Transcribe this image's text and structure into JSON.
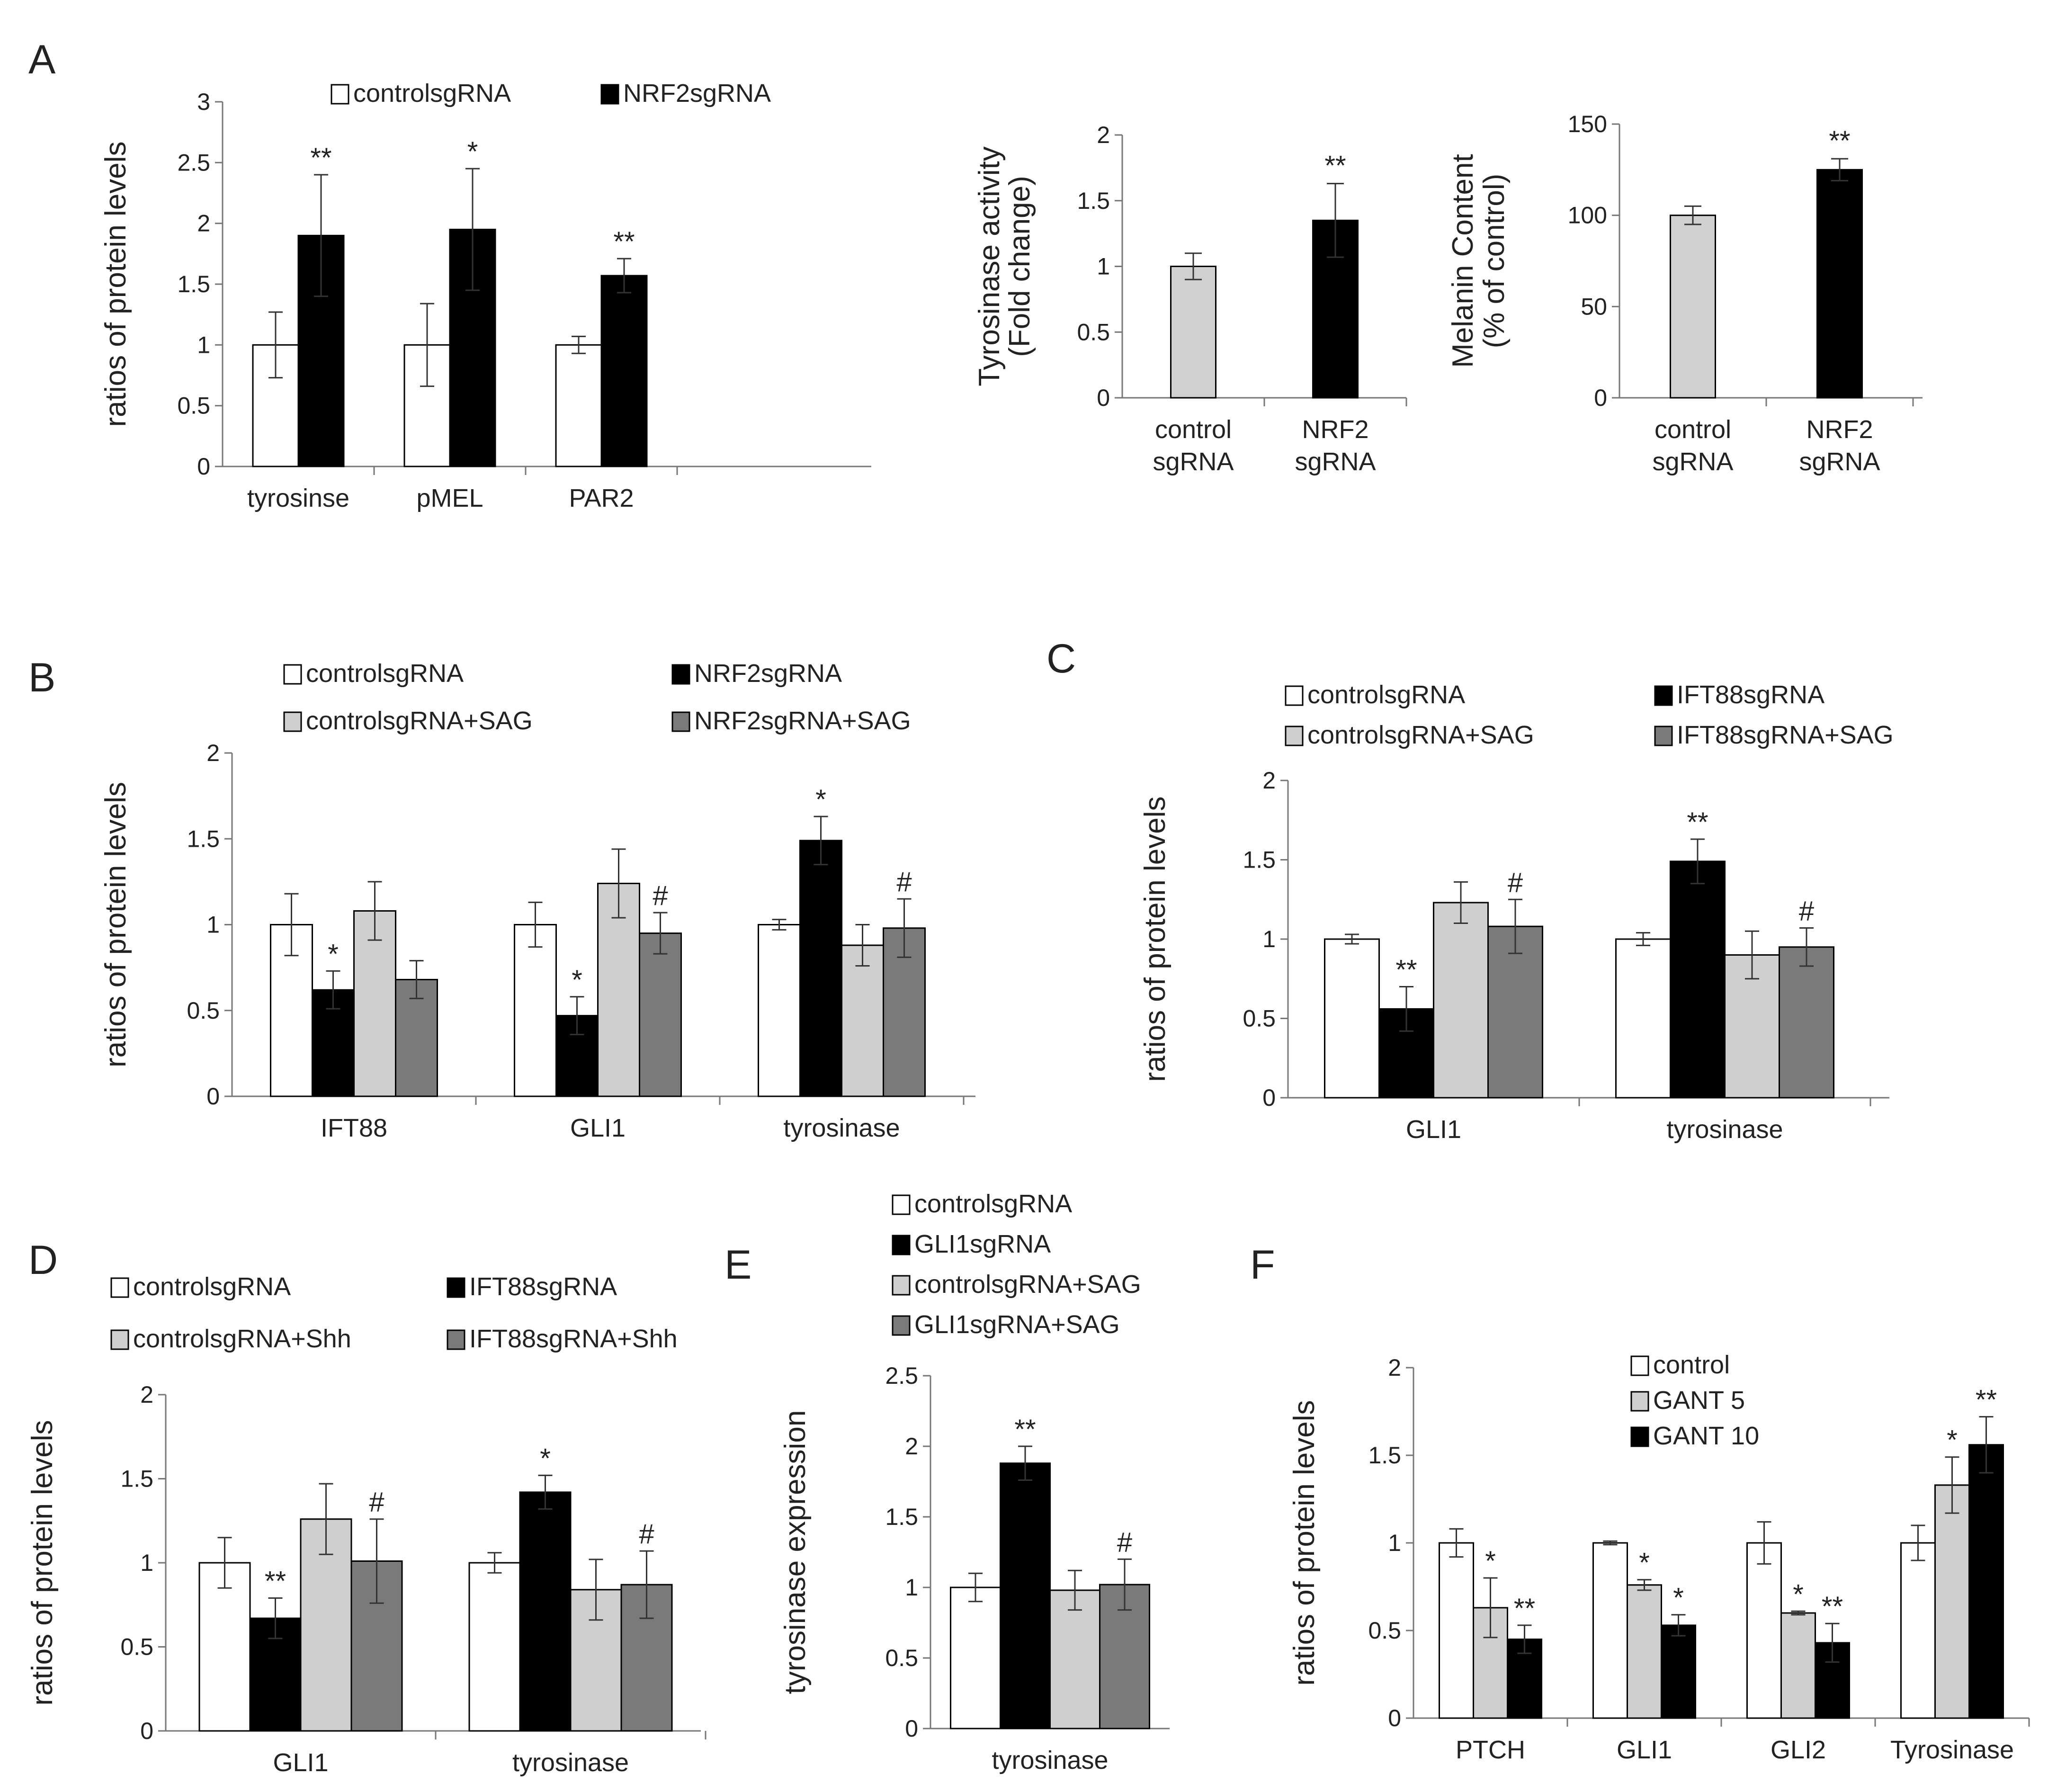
{
  "panels": [
    {
      "id": "A",
      "label": "A"
    },
    {
      "id": "B",
      "label": "B"
    },
    {
      "id": "C",
      "label": "C"
    },
    {
      "id": "D",
      "label": "D"
    },
    {
      "id": "E",
      "label": "E"
    },
    {
      "id": "F",
      "label": "F"
    }
  ],
  "colors": {
    "white": "#ffffff",
    "black": "#000000",
    "light_gray": "#cfcfcf",
    "dark_gray": "#7a7a7a",
    "axis": "#777777"
  },
  "chart_data": [
    {
      "id": "A1",
      "panel": "A",
      "type": "bar",
      "title": "",
      "xlabel": "",
      "ylabel": "ratios of protein levels",
      "ylim": [
        0,
        3
      ],
      "yticks": [
        0,
        0.5,
        1,
        1.5,
        2,
        2.5,
        3
      ],
      "ytick_labels": [
        "0",
        "0.5",
        "1",
        "1.5",
        "2",
        "2.5",
        "3"
      ],
      "categories": [
        "tyrosinse",
        "pMEL",
        "PAR2"
      ],
      "legend": "top",
      "series": [
        {
          "name": "controlsgRNA",
          "color": "#ffffff",
          "values": [
            1.0,
            1.0,
            1.0
          ],
          "errors": [
            0.27,
            0.34,
            0.07
          ],
          "sig": [
            "",
            "",
            ""
          ]
        },
        {
          "name": "NRF2sgRNA",
          "color": "#000000",
          "values": [
            1.9,
            1.95,
            1.57
          ],
          "errors": [
            0.5,
            0.5,
            0.14
          ],
          "sig": [
            "**",
            "*",
            "**"
          ]
        }
      ]
    },
    {
      "id": "A2",
      "panel": "A",
      "type": "bar",
      "title": "",
      "xlabel": "",
      "ylabel": [
        "Tyrosinase activity",
        "(Fold change)"
      ],
      "ylim": [
        0,
        2
      ],
      "yticks": [
        0,
        0.5,
        1,
        1.5,
        2
      ],
      "ytick_labels": [
        "0",
        "0.5",
        "1",
        "1.5",
        "2"
      ],
      "categories": [
        [
          "control",
          "sgRNA"
        ],
        [
          "NRF2",
          "sgRNA"
        ]
      ],
      "legend": "none",
      "series": [
        {
          "name": "",
          "colors": [
            "#d0d0d0",
            "#000000"
          ],
          "values": [
            1.0,
            1.35
          ],
          "errors": [
            0.1,
            0.28
          ],
          "sig": [
            "",
            "**"
          ]
        }
      ]
    },
    {
      "id": "A3",
      "panel": "A",
      "type": "bar",
      "title": "",
      "xlabel": "",
      "ylabel": [
        "Melanin Content",
        "(% of control)"
      ],
      "ylim": [
        0,
        150
      ],
      "yticks": [
        0,
        50,
        100,
        150
      ],
      "ytick_labels": [
        "0",
        "50",
        "100",
        "150"
      ],
      "categories": [
        [
          "control",
          "sgRNA"
        ],
        [
          "NRF2",
          "sgRNA"
        ]
      ],
      "legend": "none",
      "series": [
        {
          "name": "",
          "colors": [
            "#d0d0d0",
            "#000000"
          ],
          "values": [
            100,
            125
          ],
          "errors": [
            5,
            6
          ],
          "sig": [
            "",
            "**"
          ]
        }
      ]
    },
    {
      "id": "B",
      "panel": "B",
      "type": "bar",
      "title": "",
      "xlabel": "",
      "ylabel": "ratios of protein levels",
      "ylim": [
        0,
        2
      ],
      "yticks": [
        0,
        0.5,
        1,
        1.5,
        2
      ],
      "ytick_labels": [
        "0",
        "0.5",
        "1",
        "1.5",
        "2"
      ],
      "categories": [
        "IFT88",
        "GLI1",
        "tyrosinase"
      ],
      "legend": "top (2 columns)",
      "series": [
        {
          "name": "controlsgRNA",
          "color": "#ffffff",
          "values": [
            1.0,
            1.0,
            1.0
          ],
          "errors": [
            0.18,
            0.13,
            0.03
          ],
          "sig": [
            "",
            "",
            ""
          ]
        },
        {
          "name": "NRF2sgRNA",
          "color": "#000000",
          "values": [
            0.62,
            0.47,
            1.49
          ],
          "errors": [
            0.11,
            0.11,
            0.14
          ],
          "sig": [
            "*",
            "*",
            "*"
          ]
        },
        {
          "name": "controlsgRNA+SAG",
          "color": "#cfcfcf",
          "values": [
            1.08,
            1.24,
            0.88
          ],
          "errors": [
            0.17,
            0.2,
            0.12
          ],
          "sig": [
            "",
            "",
            ""
          ]
        },
        {
          "name": "NRF2sgRNA+SAG",
          "color": "#7a7a7a",
          "values": [
            0.68,
            0.95,
            0.98
          ],
          "errors": [
            0.11,
            0.12,
            0.17
          ],
          "sig": [
            "",
            "#",
            "#"
          ]
        }
      ]
    },
    {
      "id": "C",
      "panel": "C",
      "type": "bar",
      "title": "",
      "xlabel": "",
      "ylabel": "ratios of protein levels",
      "ylim": [
        0,
        2
      ],
      "yticks": [
        0,
        0.5,
        1,
        1.5,
        2
      ],
      "ytick_labels": [
        "0",
        "0.5",
        "1",
        "1.5",
        "2"
      ],
      "categories": [
        "GLI1",
        "tyrosinase"
      ],
      "legend": "top (2 columns)",
      "series": [
        {
          "name": "controlsgRNA",
          "color": "#ffffff",
          "values": [
            1.0,
            1.0
          ],
          "errors": [
            0.03,
            0.04
          ],
          "sig": [
            "",
            ""
          ]
        },
        {
          "name": "IFT88sgRNA",
          "color": "#000000",
          "values": [
            0.56,
            1.49
          ],
          "errors": [
            0.14,
            0.14
          ],
          "sig": [
            "**",
            "**"
          ]
        },
        {
          "name": "controlsgRNA+SAG",
          "color": "#cfcfcf",
          "values": [
            1.23,
            0.9
          ],
          "errors": [
            0.13,
            0.15
          ],
          "sig": [
            "",
            ""
          ]
        },
        {
          "name": "IFT88sgRNA+SAG",
          "color": "#7a7a7a",
          "values": [
            1.08,
            0.95
          ],
          "errors": [
            0.17,
            0.12
          ],
          "sig": [
            "#",
            "#"
          ]
        }
      ]
    },
    {
      "id": "D",
      "panel": "D",
      "type": "bar",
      "title": "",
      "xlabel": "",
      "ylabel": "ratios of protein levels",
      "ylim": [
        0,
        2
      ],
      "yticks": [
        0,
        0.5,
        1,
        1.5,
        2
      ],
      "ytick_labels": [
        "0",
        "0.5",
        "1",
        "1.5",
        "2"
      ],
      "categories": [
        "GLI1",
        "tyrosinase"
      ],
      "legend": "top (2 columns)",
      "series": [
        {
          "name": "controlsgRNA",
          "color": "#ffffff",
          "values": [
            1.0,
            1.0
          ],
          "errors": [
            0.15,
            0.06
          ],
          "sig": [
            "",
            ""
          ]
        },
        {
          "name": "IFT88sgRNA",
          "color": "#000000",
          "values": [
            0.67,
            1.42
          ],
          "errors": [
            0.12,
            0.1
          ],
          "sig": [
            "**",
            "*"
          ]
        },
        {
          "name": "controlsgRNA+Shh",
          "color": "#cfcfcf",
          "values": [
            1.26,
            0.84
          ],
          "errors": [
            0.21,
            0.18
          ],
          "sig": [
            "",
            ""
          ]
        },
        {
          "name": "IFT88sgRNA+Shh",
          "color": "#7a7a7a",
          "values": [
            1.01,
            0.87
          ],
          "errors": [
            0.25,
            0.2
          ],
          "sig": [
            "#",
            "#"
          ]
        }
      ]
    },
    {
      "id": "E",
      "panel": "E",
      "type": "bar",
      "title": "",
      "xlabel": "",
      "ylabel": "tyrosinase expression",
      "ylim": [
        0,
        2.5
      ],
      "yticks": [
        0,
        0.5,
        1,
        1.5,
        2,
        2.5
      ],
      "ytick_labels": [
        "0",
        "0.5",
        "1",
        "1.5",
        "2",
        "2.5"
      ],
      "categories": [
        "tyrosinase"
      ],
      "legend": "top (1 column)",
      "series": [
        {
          "name": "controlsgRNA",
          "color": "#ffffff",
          "values": [
            1.0
          ],
          "errors": [
            0.1
          ],
          "sig": [
            ""
          ]
        },
        {
          "name": "GLI1sgRNA",
          "color": "#000000",
          "values": [
            1.88
          ],
          "errors": [
            0.12
          ],
          "sig": [
            "**"
          ]
        },
        {
          "name": "controlsgRNA+SAG",
          "color": "#cfcfcf",
          "values": [
            0.98
          ],
          "errors": [
            0.14
          ],
          "sig": [
            ""
          ]
        },
        {
          "name": "GLI1sgRNA+SAG",
          "color": "#7a7a7a",
          "values": [
            1.02
          ],
          "errors": [
            0.18
          ],
          "sig": [
            "#"
          ]
        }
      ]
    },
    {
      "id": "F",
      "panel": "F",
      "type": "bar",
      "title": "",
      "xlabel": "",
      "ylabel": "ratios of protein levels",
      "ylim": [
        0,
        2
      ],
      "yticks": [
        0,
        0.5,
        1,
        1.5,
        2
      ],
      "ytick_labels": [
        "0",
        "0.5",
        "1",
        "1.5",
        "2"
      ],
      "categories": [
        "PTCH",
        "GLI1",
        "GLI2",
        "Tyrosinase"
      ],
      "legend": "inside top",
      "series": [
        {
          "name": "control",
          "color": "#ffffff",
          "values": [
            1.0,
            1.0,
            1.0,
            1.0
          ],
          "errors": [
            0.08,
            0.01,
            0.12,
            0.1
          ],
          "sig": [
            "",
            "",
            "",
            ""
          ]
        },
        {
          "name": "GANT 5",
          "color": "#cfcfcf",
          "values": [
            0.63,
            0.76,
            0.6,
            1.33
          ],
          "errors": [
            0.17,
            0.03,
            0.01,
            0.16
          ],
          "sig": [
            "*",
            "*",
            "*",
            "*"
          ]
        },
        {
          "name": "GANT 10",
          "color": "#000000",
          "values": [
            0.45,
            0.53,
            0.43,
            1.56
          ],
          "errors": [
            0.08,
            0.06,
            0.11,
            0.16
          ],
          "sig": [
            "**",
            "*",
            "**",
            "**"
          ]
        }
      ]
    }
  ]
}
